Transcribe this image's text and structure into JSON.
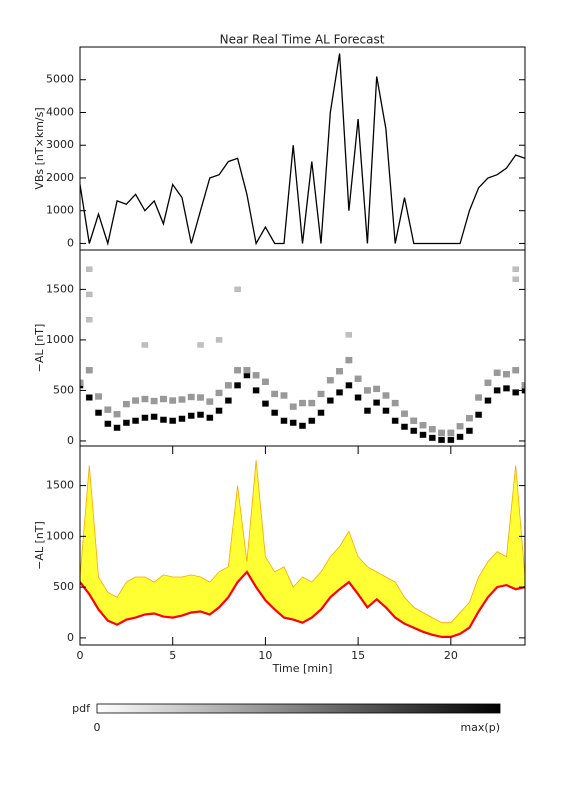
{
  "chart_data": [
    {
      "type": "line",
      "title": "Near Real Time AL Forecast",
      "ylabel": "VBs [nT×km/s]",
      "xlim": [
        0,
        24
      ],
      "ylim": [
        -200,
        6000
      ],
      "yticks": [
        0,
        1000,
        2000,
        3000,
        4000,
        5000
      ],
      "x": [
        0,
        0.5,
        1,
        1.5,
        2,
        2.5,
        3,
        3.5,
        4,
        4.5,
        5,
        5.5,
        6,
        6.5,
        7,
        7.5,
        8,
        8.5,
        9,
        9.5,
        10,
        10.5,
        11,
        11.5,
        12,
        12.5,
        13,
        13.5,
        14,
        14.5,
        15,
        15.5,
        16,
        16.5,
        17,
        17.5,
        18,
        18.5,
        19,
        19.5,
        20,
        20.5,
        21,
        21.5,
        22,
        22.5,
        23,
        23.5,
        24
      ],
      "color": "#000000",
      "values": [
        1800,
        0,
        900,
        0,
        1300,
        1200,
        1500,
        1000,
        1300,
        600,
        1800,
        1400,
        0,
        1000,
        2000,
        2100,
        2500,
        2600,
        1500,
        0,
        500,
        0,
        0,
        3000,
        0,
        2500,
        0,
        4000,
        5800,
        1000,
        3800,
        0,
        5100,
        3500,
        0,
        1400,
        0,
        0,
        0,
        0,
        0,
        0,
        1000,
        1700,
        2000,
        2100,
        2300,
        2700,
        2600
      ]
    },
    {
      "type": "heatmap",
      "ylabel": "−AL [nT]",
      "xlim": [
        0,
        24
      ],
      "ylim": [
        -50,
        1890
      ],
      "yticks": [
        0,
        500,
        1000,
        1500
      ],
      "x": [
        0,
        0.5,
        1,
        1.5,
        2,
        2.5,
        3,
        3.5,
        4,
        4.5,
        5,
        5.5,
        6,
        6.5,
        7,
        7.5,
        8,
        8.5,
        9,
        9.5,
        10,
        10.5,
        11,
        11.5,
        12,
        12.5,
        13,
        13.5,
        14,
        14.5,
        15,
        15.5,
        16,
        16.5,
        17,
        17.5,
        18,
        18.5,
        19,
        19.5,
        20,
        20.5,
        21,
        21.5,
        22,
        22.5,
        23,
        23.5,
        24
      ],
      "levels": [
        {
          "p": 1.0,
          "values": [
            550,
            430,
            280,
            170,
            130,
            180,
            200,
            230,
            240,
            210,
            200,
            220,
            250,
            260,
            230,
            300,
            400,
            550,
            650,
            500,
            370,
            280,
            200,
            180,
            150,
            200,
            280,
            400,
            480,
            550,
            430,
            300,
            380,
            300,
            200,
            140,
            100,
            60,
            30,
            10,
            10,
            40,
            100,
            260,
            400,
            500,
            520,
            480,
            500
          ]
        },
        {
          "p": 0.4,
          "values": [
            575,
            700,
            440,
            310,
            265,
            365,
            400,
            415,
            395,
            415,
            400,
            410,
            435,
            430,
            390,
            475,
            550,
            700,
            700,
            650,
            585,
            465,
            450,
            340,
            375,
            375,
            465,
            600,
            690,
            800,
            615,
            500,
            515,
            450,
            375,
            270,
            200,
            155,
            115,
            80,
            80,
            145,
            225,
            430,
            575,
            675,
            660,
            700,
            550
          ]
        }
      ],
      "outliers": {
        "p": 0.25,
        "x": [
          0.5,
          0.5,
          0.5,
          3.5,
          6.5,
          7.5,
          8.5,
          14.5,
          23.5,
          23.5
        ],
        "values": [
          1700,
          1450,
          1200,
          950,
          950,
          1000,
          1500,
          1050,
          1700,
          1600
        ]
      }
    },
    {
      "type": "band",
      "ylabel": "−AL [nT]",
      "xlabel": "Time [min]",
      "xlim": [
        0,
        24
      ],
      "ylim": [
        -70,
        1890
      ],
      "yticks": [
        0,
        500,
        1000,
        1500
      ],
      "xticks": [
        0,
        5,
        10,
        15,
        20
      ],
      "x": [
        0,
        0.5,
        1,
        1.5,
        2,
        2.5,
        3,
        3.5,
        4,
        4.5,
        5,
        5.5,
        6,
        6.5,
        7,
        7.5,
        8,
        8.5,
        9,
        9.5,
        10,
        10.5,
        11,
        11.5,
        12,
        12.5,
        13,
        13.5,
        14,
        14.5,
        15,
        15.5,
        16,
        16.5,
        17,
        17.5,
        18,
        18.5,
        19,
        19.5,
        20,
        20.5,
        21,
        21.5,
        22,
        22.5,
        23,
        23.5,
        24
      ],
      "band_color": "#ffff33",
      "edge_color": "#ffa500",
      "color": "#ff0000",
      "values": [
        550,
        430,
        280,
        170,
        130,
        180,
        200,
        230,
        240,
        210,
        200,
        220,
        250,
        260,
        230,
        300,
        400,
        550,
        650,
        500,
        370,
        280,
        200,
        180,
        150,
        200,
        280,
        400,
        480,
        550,
        430,
        300,
        380,
        300,
        200,
        140,
        100,
        60,
        30,
        10,
        10,
        40,
        100,
        260,
        400,
        500,
        520,
        480,
        500
      ],
      "upper": [
        600,
        1700,
        600,
        450,
        400,
        550,
        600,
        600,
        550,
        620,
        600,
        600,
        620,
        600,
        550,
        650,
        700,
        1500,
        750,
        1750,
        800,
        650,
        700,
        500,
        600,
        550,
        650,
        800,
        900,
        1050,
        800,
        700,
        650,
        600,
        550,
        400,
        300,
        250,
        200,
        150,
        150,
        250,
        350,
        600,
        750,
        850,
        800,
        1700,
        600
      ]
    }
  ],
  "colorbar": {
    "label": "pdf",
    "min_label": "0",
    "max_label": "max(p)"
  }
}
